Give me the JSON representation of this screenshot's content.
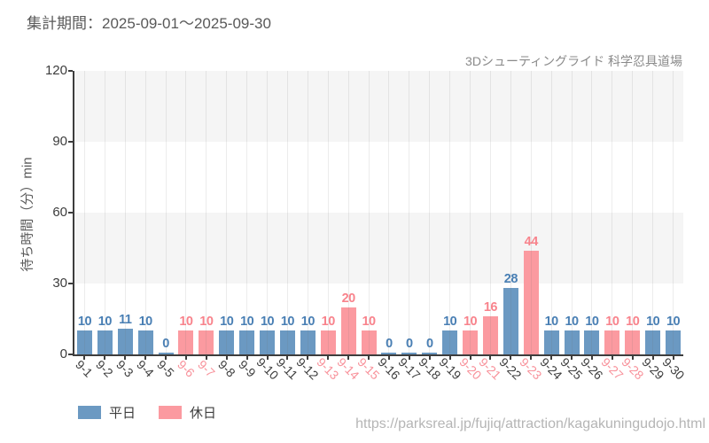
{
  "header": {
    "title": "集計期間：2025-09-01～2025-09-30"
  },
  "chart_data": {
    "type": "bar",
    "title": "3Dシューティングライド 科学忍具道場",
    "ylabel": "待ち時間（分）min",
    "ylim": [
      0,
      120
    ],
    "yticks": [
      0,
      30,
      60,
      90,
      120
    ],
    "grid": "vertical",
    "legend_position": "bottom-left",
    "categories": [
      "9-1",
      "9-2",
      "9-3",
      "9-4",
      "9-5",
      "9-6",
      "9-7",
      "9-8",
      "9-9",
      "9-10",
      "9-11",
      "9-12",
      "9-13",
      "9-14",
      "9-15",
      "9-16",
      "9-17",
      "9-18",
      "9-19",
      "9-20",
      "9-21",
      "9-22",
      "9-23",
      "9-24",
      "9-25",
      "9-26",
      "9-27",
      "9-28",
      "9-29",
      "9-30"
    ],
    "values": [
      10,
      10,
      11,
      10,
      0,
      10,
      10,
      10,
      10,
      10,
      10,
      10,
      10,
      20,
      10,
      0,
      0,
      0,
      10,
      10,
      16,
      28,
      44,
      10,
      10,
      10,
      10,
      10,
      10,
      10
    ],
    "category_types": [
      "weekday",
      "weekday",
      "weekday",
      "weekday",
      "weekday",
      "holiday",
      "holiday",
      "weekday",
      "weekday",
      "weekday",
      "weekday",
      "weekday",
      "holiday",
      "holiday",
      "holiday",
      "weekday",
      "weekday",
      "weekday",
      "weekday",
      "holiday",
      "holiday",
      "weekday",
      "holiday",
      "weekday",
      "weekday",
      "weekday",
      "holiday",
      "holiday",
      "weekday",
      "weekday"
    ],
    "series": [
      {
        "name": "平日",
        "key": "weekday",
        "bar_color": "#6b99c2",
        "label_color": "#497fb4",
        "tick_color": "#3d3d3d"
      },
      {
        "name": "休日",
        "key": "holiday",
        "bar_color": "#fb9aa0",
        "label_color": "#f8838c",
        "tick_color": "#f8919a"
      }
    ]
  },
  "footer": {
    "url": "https://parksreal.jp/fujiq/attraction/kagakuningudojo.html"
  }
}
